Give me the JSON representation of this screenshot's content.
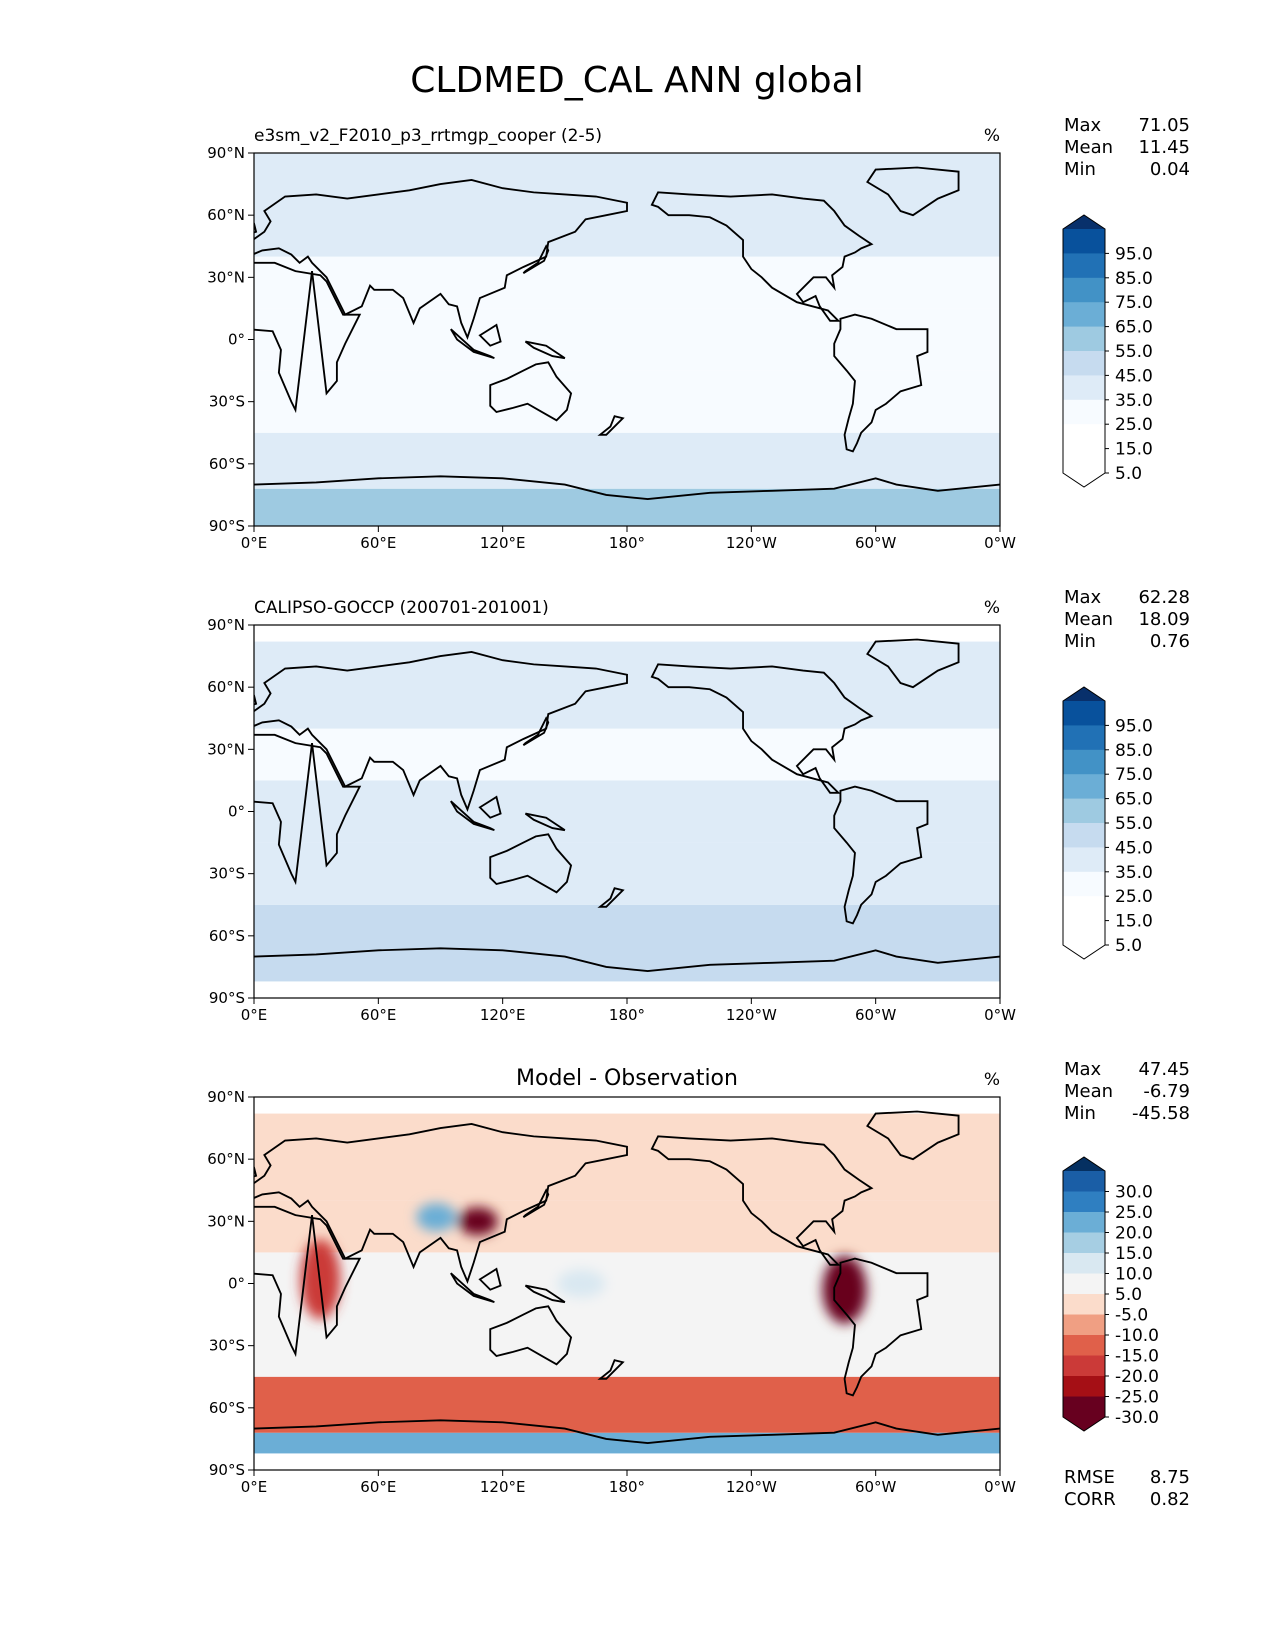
{
  "title": "CLDMED_CAL ANN global",
  "colors": {
    "blues": [
      "#ffffff",
      "#f7fbff",
      "#deebf7",
      "#c6dbef",
      "#9ecae1",
      "#6baed6",
      "#4292c6",
      "#2171b5",
      "#08519c",
      "#08306b"
    ],
    "diverging": [
      "#67001f",
      "#a50f15",
      "#cb3a38",
      "#e0604a",
      "#f09f83",
      "#fbdccb",
      "#f4f4f4",
      "#d9e8f1",
      "#a6cee3",
      "#6baed6",
      "#2f7fc1",
      "#1a5ea6",
      "#053061"
    ],
    "land_line": "#000000"
  },
  "chart_data": [
    {
      "type": "heatmap",
      "panel": "model",
      "title": "e3sm_v2_F2010_p3_rrtmgp_cooper (2-5)",
      "units": "%",
      "stats": [
        [
          "Max",
          "71.05"
        ],
        [
          "Mean",
          "11.45"
        ],
        [
          "Min",
          "0.04"
        ]
      ],
      "xticks": [
        "0°E",
        "60°E",
        "120°E",
        "180°",
        "120°W",
        "60°W",
        "0°W"
      ],
      "yticks": [
        "90°N",
        "60°N",
        "30°N",
        "0°",
        "30°S",
        "60°S",
        "90°S"
      ],
      "xlim": [
        0,
        360
      ],
      "ylim": [
        -90,
        90
      ],
      "colorbar": {
        "labels": [
          "95.0",
          "85.0",
          "75.0",
          "65.0",
          "55.0",
          "45.0",
          "35.0",
          "25.0",
          "15.0",
          "5.0"
        ],
        "extend": "both"
      },
      "field_bands": [
        {
          "lat_range": [
            -90,
            -72
          ],
          "value": 40
        },
        {
          "lat_range": [
            -72,
            -45
          ],
          "value": 25
        },
        {
          "lat_range": [
            -45,
            -15
          ],
          "value": 15
        },
        {
          "lat_range": [
            -15,
            15
          ],
          "value": 12
        },
        {
          "lat_range": [
            15,
            40
          ],
          "value": 8
        },
        {
          "lat_range": [
            40,
            90
          ],
          "value": 20
        }
      ]
    },
    {
      "type": "heatmap",
      "panel": "observation",
      "title": "CALIPSO-GOCCP (200701-201001)",
      "units": "%",
      "stats": [
        [
          "Max",
          "62.28"
        ],
        [
          "Mean",
          "18.09"
        ],
        [
          "Min",
          "0.76"
        ]
      ],
      "xticks": [
        "0°E",
        "60°E",
        "120°E",
        "180°",
        "120°W",
        "60°W",
        "0°W"
      ],
      "yticks": [
        "90°N",
        "60°N",
        "30°N",
        "0°",
        "30°S",
        "60°S",
        "90°S"
      ],
      "xlim": [
        0,
        360
      ],
      "ylim": [
        -90,
        90
      ],
      "data_lat_range": [
        -82,
        82
      ],
      "colorbar": {
        "labels": [
          "95.0",
          "85.0",
          "75.0",
          "65.0",
          "55.0",
          "45.0",
          "35.0",
          "25.0",
          "15.0",
          "5.0"
        ],
        "extend": "both"
      },
      "field_bands": [
        {
          "lat_range": [
            -82,
            -45
          ],
          "value": 35
        },
        {
          "lat_range": [
            -45,
            -15
          ],
          "value": 20
        },
        {
          "lat_range": [
            -15,
            15
          ],
          "value": 16
        },
        {
          "lat_range": [
            15,
            40
          ],
          "value": 15
        },
        {
          "lat_range": [
            40,
            82
          ],
          "value": 25
        }
      ]
    },
    {
      "type": "heatmap",
      "panel": "difference",
      "title": "Model - Observation",
      "units": "%",
      "stats": [
        [
          "Max",
          "47.45"
        ],
        [
          "Mean",
          "-6.79"
        ],
        [
          "Min",
          "-45.58"
        ]
      ],
      "metrics": [
        [
          "RMSE",
          "8.75"
        ],
        [
          "CORR",
          "0.82"
        ]
      ],
      "xticks": [
        "0°E",
        "60°E",
        "120°E",
        "180°",
        "120°W",
        "60°W",
        "0°W"
      ],
      "yticks": [
        "90°N",
        "60°N",
        "30°N",
        "0°",
        "30°S",
        "60°S",
        "90°S"
      ],
      "xlim": [
        0,
        360
      ],
      "ylim": [
        -90,
        90
      ],
      "data_lat_range": [
        -82,
        82
      ],
      "colorbar": {
        "labels": [
          "30.0",
          "25.0",
          "20.0",
          "15.0",
          "10.0",
          "5.0",
          "-5.0",
          "-10.0",
          "-15.0",
          "-20.0",
          "-25.0",
          "-30.0"
        ],
        "extend": "both"
      },
      "field_bands": [
        {
          "lat_range": [
            -82,
            -72
          ],
          "value": 20
        },
        {
          "lat_range": [
            -72,
            -45
          ],
          "value": -15
        },
        {
          "lat_range": [
            -45,
            -15
          ],
          "value": -3
        },
        {
          "lat_range": [
            -15,
            15
          ],
          "value": -4
        },
        {
          "lat_range": [
            15,
            40
          ],
          "value": -6
        },
        {
          "lat_range": [
            40,
            82
          ],
          "value": -8
        }
      ],
      "features": [
        {
          "name": "amazon-dry-bias",
          "lon": 285,
          "lat": -3,
          "value": -30
        },
        {
          "name": "africa-dry-bias",
          "lon": 32,
          "lat": 2,
          "value": -20
        },
        {
          "name": "china-dry-bias",
          "lon": 108,
          "lat": 30,
          "value": -30
        },
        {
          "name": "tibet-wet-bias",
          "lon": 88,
          "lat": 32,
          "value": 20
        },
        {
          "name": "pacific-wet-bias",
          "lon": 158,
          "lat": 0,
          "value": 8
        }
      ]
    }
  ]
}
